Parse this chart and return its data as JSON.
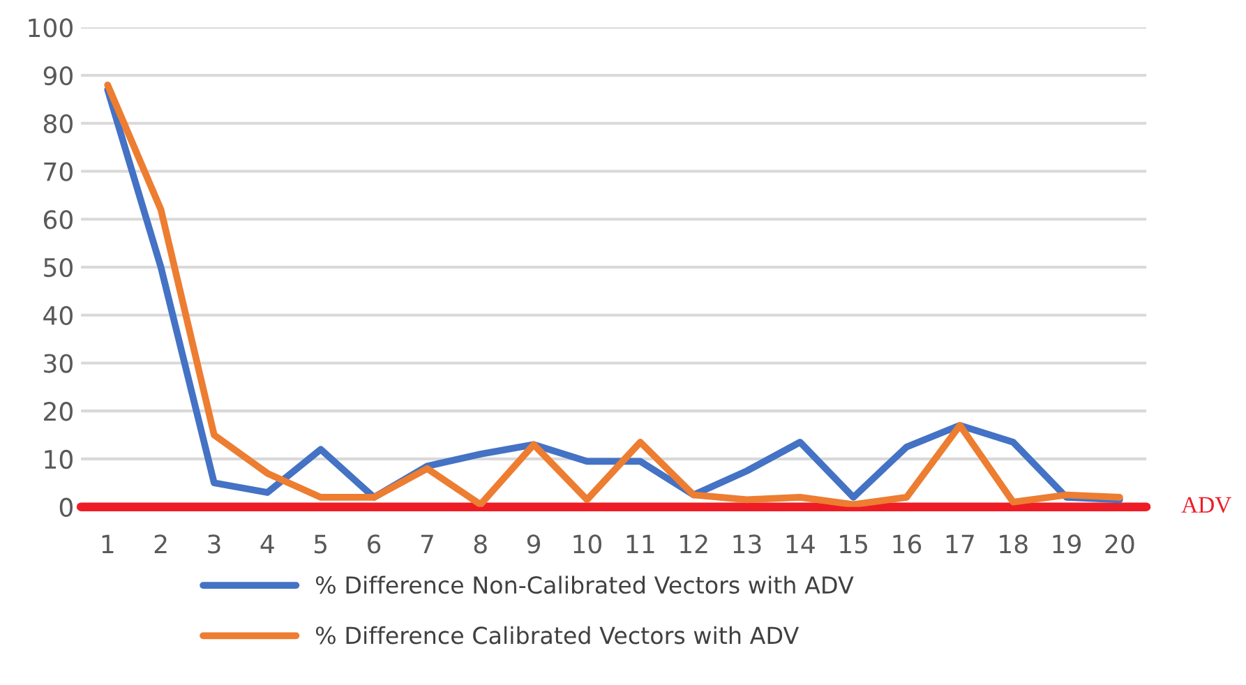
{
  "chart_data": {
    "type": "line",
    "categories": [
      "1",
      "2",
      "3",
      "4",
      "5",
      "6",
      "7",
      "8",
      "9",
      "10",
      "11",
      "12",
      "13",
      "14",
      "15",
      "16",
      "17",
      "18",
      "19",
      "20"
    ],
    "series": [
      {
        "name": "% Difference Non-Calibrated Vectors with ADV",
        "color": "#4472c4",
        "values": [
          87,
          50,
          5,
          3,
          12,
          2,
          8.5,
          11,
          13,
          9.5,
          9.5,
          2.5,
          7.5,
          13.5,
          2,
          12.5,
          17,
          13.5,
          2,
          1.5
        ]
      },
      {
        "name": "% Difference Calibrated Vectors with ADV",
        "color": "#ed7d31",
        "values": [
          88,
          62,
          15,
          7,
          2,
          2,
          8,
          0.5,
          13,
          1.5,
          13.5,
          2.5,
          1.5,
          2,
          0.5,
          2,
          17,
          1,
          2.5,
          2
        ]
      }
    ],
    "ylim": [
      0,
      100
    ],
    "yticks": [
      0,
      10,
      20,
      30,
      40,
      50,
      60,
      70,
      80,
      90,
      100
    ],
    "annotations": [
      "ADV"
    ],
    "grid": "y",
    "legend": "bottom",
    "marker": "none",
    "line_style": "solid"
  }
}
